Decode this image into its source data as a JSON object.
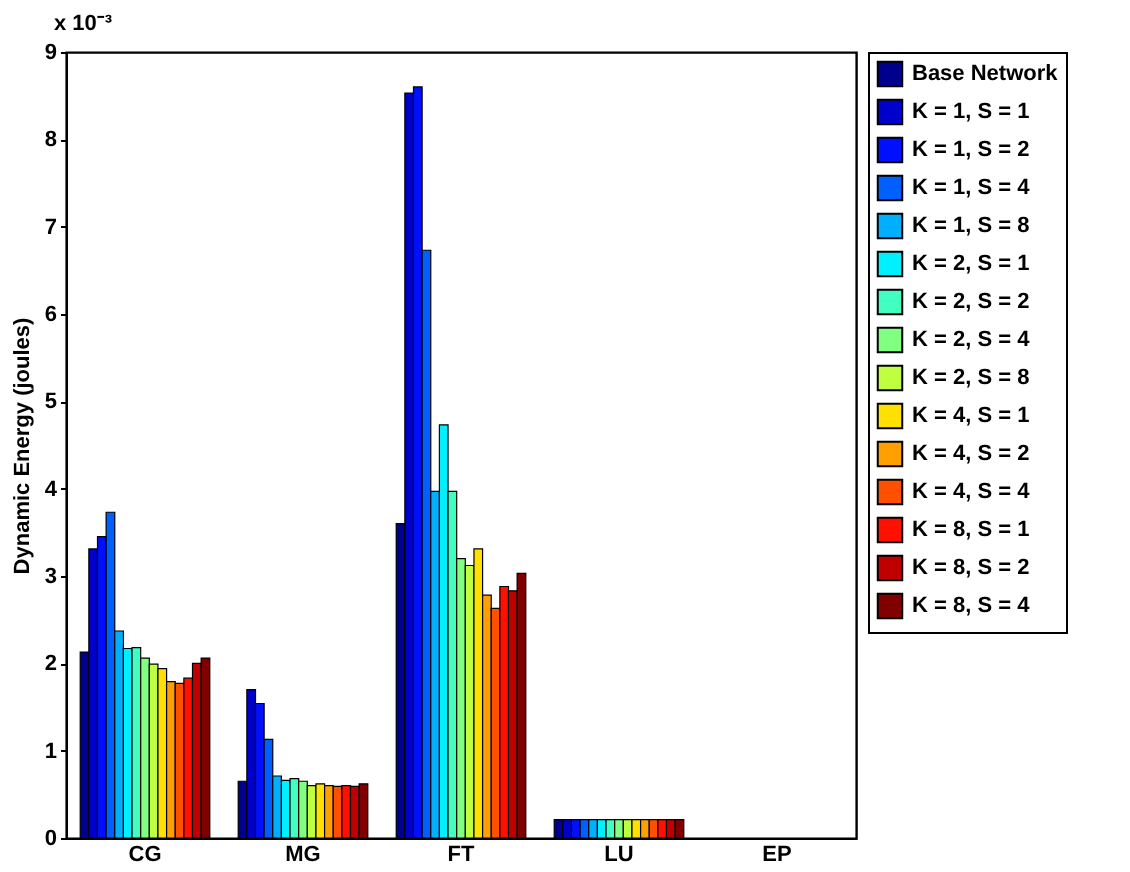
{
  "chart_data": {
    "type": "bar",
    "ylabel": "Dynamic Energy (joules)",
    "annotations": [
      "x 10⁻³"
    ],
    "categories": [
      "CG",
      "MG",
      "FT",
      "LU",
      "EP"
    ],
    "ylim": [
      0,
      9
    ],
    "yticks": [
      0,
      1,
      2,
      3,
      4,
      5,
      6,
      7,
      8,
      9
    ],
    "grid": false,
    "legend": "top right",
    "series": [
      {
        "name": "Base Network",
        "color": "#00008f",
        "values": [
          2.13,
          0.65,
          3.6,
          0.21,
          null
        ]
      },
      {
        "name": "K = 1, S = 1",
        "color": "#0000cc",
        "values": [
          3.31,
          1.7,
          8.53,
          0.21,
          null
        ]
      },
      {
        "name": "K = 1, S = 2",
        "color": "#0010ff",
        "values": [
          3.45,
          1.54,
          8.6,
          0.21,
          null
        ]
      },
      {
        "name": "K = 1, S = 4",
        "color": "#0060ff",
        "values": [
          3.73,
          1.13,
          6.73,
          0.21,
          null
        ]
      },
      {
        "name": "K = 1, S = 8",
        "color": "#00b0ff",
        "values": [
          2.37,
          0.71,
          3.97,
          0.21,
          null
        ]
      },
      {
        "name": "K = 2, S = 1",
        "color": "#00f0ff",
        "values": [
          2.17,
          0.66,
          4.73,
          0.21,
          null
        ]
      },
      {
        "name": "K = 2, S = 2",
        "color": "#40ffc0",
        "values": [
          2.18,
          0.68,
          3.97,
          0.21,
          null
        ]
      },
      {
        "name": "K = 2, S = 4",
        "color": "#80ff80",
        "values": [
          2.06,
          0.65,
          3.2,
          0.21,
          null
        ]
      },
      {
        "name": "K = 2, S = 8",
        "color": "#c0ff40",
        "values": [
          1.99,
          0.6,
          3.12,
          0.21,
          null
        ]
      },
      {
        "name": "K = 4, S = 1",
        "color": "#ffe000",
        "values": [
          1.94,
          0.62,
          3.31,
          0.21,
          null
        ]
      },
      {
        "name": "K = 4, S = 2",
        "color": "#ffa000",
        "values": [
          1.79,
          0.6,
          2.78,
          0.21,
          null
        ]
      },
      {
        "name": "K = 4, S = 4",
        "color": "#ff5000",
        "values": [
          1.77,
          0.59,
          2.63,
          0.21,
          null
        ]
      },
      {
        "name": "K = 8, S = 1",
        "color": "#ff1000",
        "values": [
          1.83,
          0.6,
          2.88,
          0.21,
          null
        ]
      },
      {
        "name": "K = 8, S = 2",
        "color": "#c00000",
        "values": [
          2.0,
          0.59,
          2.83,
          0.21,
          null
        ]
      },
      {
        "name": "K = 8, S = 4",
        "color": "#800000",
        "values": [
          2.06,
          0.62,
          3.03,
          0.21,
          null
        ]
      }
    ]
  }
}
